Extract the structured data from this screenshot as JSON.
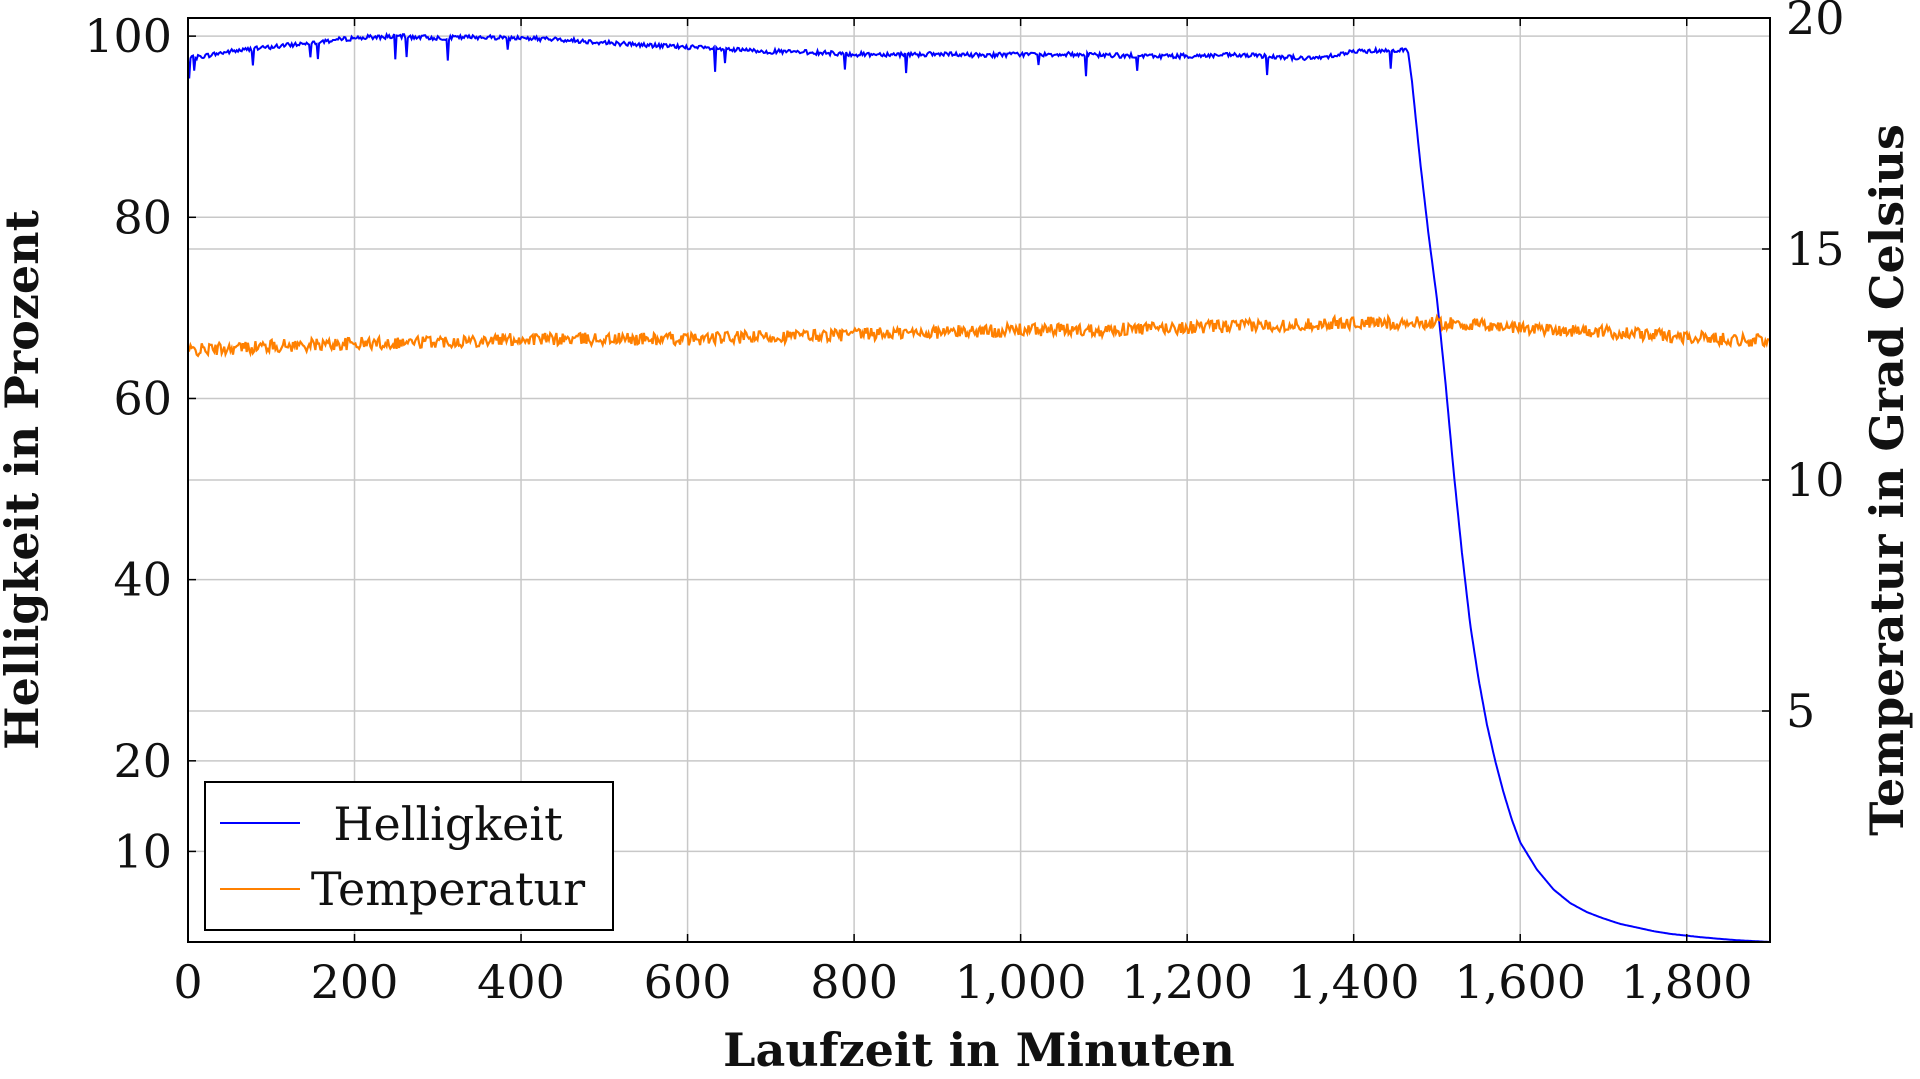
{
  "chart_data": {
    "type": "line",
    "title": "",
    "xlabel": "Laufzeit in Minuten",
    "ylabel_left": "Helligkeit in Prozent",
    "ylabel_right": "Temperatur in Grad Celsius",
    "xlim": [
      0,
      1900
    ],
    "ylim_left": [
      0,
      102
    ],
    "ylim_right": [
      0,
      20
    ],
    "xticks": [
      0,
      200,
      400,
      600,
      800,
      1000,
      1200,
      1400,
      1600,
      1800
    ],
    "xtick_labels": [
      "0",
      "200",
      "400",
      "600",
      "800",
      "1,000",
      "1,200",
      "1,400",
      "1,600",
      "1,800"
    ],
    "yticks_left": [
      10,
      20,
      40,
      60,
      80,
      100
    ],
    "ytick_labels_left": [
      "10",
      "20",
      "40",
      "60",
      "80",
      "100"
    ],
    "yticks_right": [
      5,
      10,
      15,
      20
    ],
    "ytick_labels_right": [
      "5",
      "10",
      "15",
      "20"
    ],
    "grid": true,
    "legend_position": "bottom-left",
    "series": [
      {
        "name": "Helligkeit",
        "axis": "left",
        "color": "#0000ff",
        "x": [
          0,
          50,
          100,
          150,
          200,
          250,
          300,
          350,
          400,
          450,
          500,
          550,
          600,
          650,
          700,
          750,
          800,
          850,
          900,
          950,
          1000,
          1050,
          1100,
          1150,
          1200,
          1250,
          1300,
          1350,
          1400,
          1450,
          1465,
          1470,
          1480,
          1490,
          1500,
          1510,
          1520,
          1530,
          1540,
          1550,
          1560,
          1570,
          1580,
          1590,
          1600,
          1620,
          1640,
          1660,
          1680,
          1700,
          1720,
          1740,
          1760,
          1780,
          1800,
          1820,
          1840,
          1860,
          1880,
          1900
        ],
        "y": [
          97.5,
          98.3,
          98.8,
          99.3,
          99.8,
          100.0,
          99.8,
          99.9,
          99.8,
          99.6,
          99.3,
          99.0,
          98.8,
          98.5,
          98.3,
          98.2,
          98.0,
          98.0,
          98.0,
          97.9,
          98.0,
          98.0,
          97.9,
          97.8,
          97.8,
          97.9,
          97.8,
          97.5,
          98.3,
          98.5,
          98.5,
          95.0,
          86.0,
          78.0,
          71.0,
          62.0,
          52.0,
          43.0,
          35.0,
          29.0,
          24.0,
          20.0,
          16.5,
          13.5,
          11.0,
          8.0,
          5.8,
          4.3,
          3.3,
          2.6,
          2.0,
          1.6,
          1.2,
          0.9,
          0.7,
          0.5,
          0.35,
          0.2,
          0.1,
          0.0
        ]
      },
      {
        "name": "Temperatur",
        "axis": "right",
        "color": "#ff8000",
        "x": [
          0,
          100,
          200,
          300,
          400,
          500,
          600,
          700,
          800,
          900,
          1000,
          1100,
          1200,
          1300,
          1400,
          1450,
          1500,
          1550,
          1600,
          1700,
          1800,
          1900
        ],
        "y": [
          12.8,
          12.9,
          12.95,
          13.0,
          13.05,
          13.05,
          13.05,
          13.1,
          13.15,
          13.2,
          13.25,
          13.25,
          13.3,
          13.35,
          13.4,
          13.4,
          13.4,
          13.35,
          13.3,
          13.2,
          13.1,
          13.0
        ]
      }
    ]
  }
}
